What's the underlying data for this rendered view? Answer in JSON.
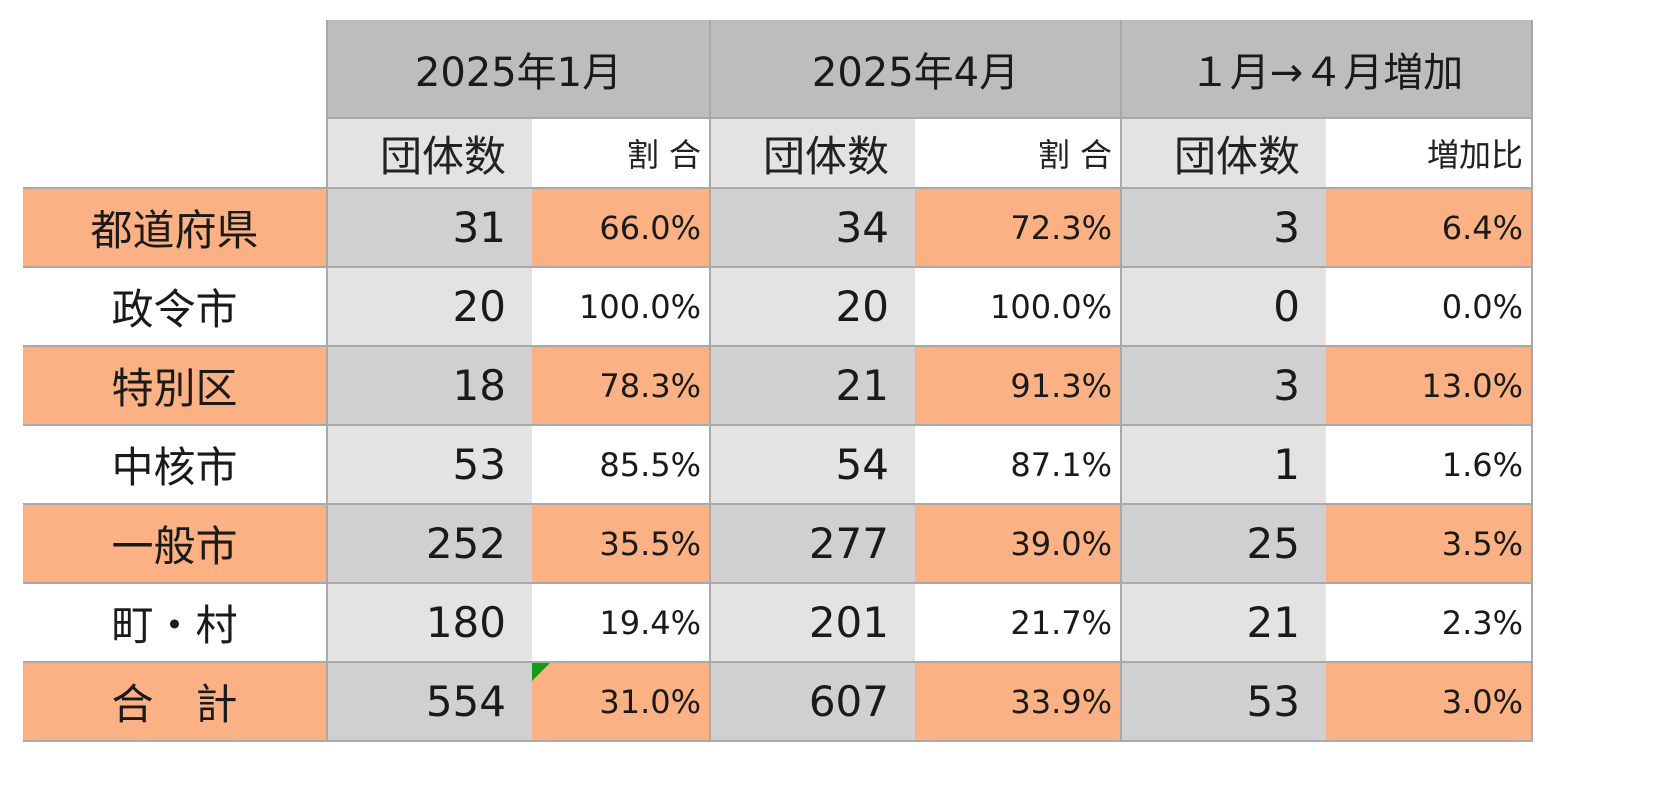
{
  "chart_data": {
    "type": "table",
    "column_groups": [
      "2025年1月",
      "2025年4月",
      "１月→４月増加"
    ],
    "sub_headers": [
      "団体数",
      "割 合",
      "団体数",
      "割 合",
      "団体数",
      "増加比"
    ],
    "rows": [
      {
        "label": "都道府県",
        "values": [
          "31",
          "66.0%",
          "34",
          "72.3%",
          "3",
          "6.4%"
        ]
      },
      {
        "label": "政令市",
        "values": [
          "20",
          "100.0%",
          "20",
          "100.0%",
          "0",
          "0.0%"
        ]
      },
      {
        "label": "特別区",
        "values": [
          "18",
          "78.3%",
          "21",
          "91.3%",
          "3",
          "13.0%"
        ]
      },
      {
        "label": "中核市",
        "values": [
          "53",
          "85.5%",
          "54",
          "87.1%",
          "1",
          "1.6%"
        ]
      },
      {
        "label": "一般市",
        "values": [
          "252",
          "35.5%",
          "277",
          "39.0%",
          "25",
          "3.5%"
        ]
      },
      {
        "label": "町・村",
        "values": [
          "180",
          "19.4%",
          "201",
          "21.7%",
          "21",
          "2.3%"
        ]
      },
      {
        "label": "合　計",
        "values": [
          "554",
          "31.0%",
          "607",
          "33.9%",
          "53",
          "3.0%"
        ]
      }
    ],
    "colors": {
      "group_header": "#bdbdbd",
      "sub_header_count": "#e3e3e3",
      "highlight_row": "#fbb183",
      "highlight_count": "#d0d0d0",
      "plain_count": "#e3e3e3",
      "grid": "#a9a9a9",
      "comment_marker": "#169b16"
    }
  }
}
